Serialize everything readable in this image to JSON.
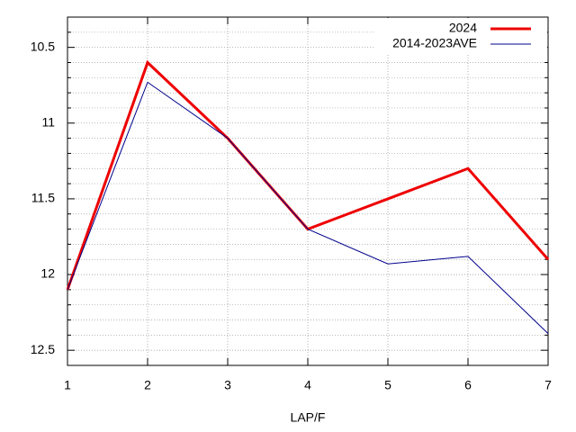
{
  "chart_data": {
    "type": "line",
    "x_label": "LAP/F",
    "x": [
      1,
      2,
      3,
      4,
      5,
      6,
      7
    ],
    "series": [
      {
        "name": "2024",
        "color": "#ee0000",
        "width": 3,
        "values": [
          12.1,
          10.6,
          11.1,
          11.7,
          11.5,
          11.3,
          11.9
        ]
      },
      {
        "name": "2014-2023AVE",
        "color": "#00008b",
        "width": 1,
        "values": [
          12.1,
          10.73,
          11.1,
          11.7,
          11.93,
          11.88,
          12.39
        ]
      }
    ],
    "xlim": [
      1,
      7
    ],
    "xticks": [
      1,
      2,
      3,
      4,
      5,
      6,
      7
    ],
    "ylim": [
      10.3,
      12.6
    ],
    "yticks": [
      10.5,
      11,
      11.5,
      12,
      12.5
    ],
    "y_reversed": true,
    "grid": true,
    "y_minor_divisions": 5,
    "legend": "top-right"
  }
}
